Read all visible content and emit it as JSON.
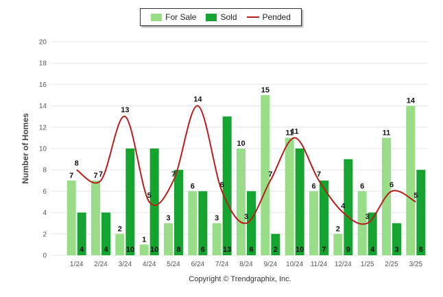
{
  "colors": {
    "for_sale": "#99dd88",
    "sold": "#16a431",
    "pended": "#b71c1c",
    "grid": "#e6e6e6",
    "axis_text": "#555555"
  },
  "credit": "Copyright © Trendgraphix, Inc.",
  "chart_data": {
    "type": "bar",
    "ylabel": "Number of Homes",
    "xlabel": "",
    "ylim": [
      0,
      20
    ],
    "yticks": [
      0,
      2,
      4,
      6,
      8,
      10,
      12,
      14,
      16,
      18,
      20
    ],
    "categories": [
      "1/24",
      "2/24",
      "3/24",
      "4/24",
      "5/24",
      "6/24",
      "7/24",
      "8/24",
      "9/24",
      "10/24",
      "11/24",
      "12/24",
      "1/25",
      "2/25",
      "3/25"
    ],
    "series": [
      {
        "name": "For Sale",
        "kind": "bar",
        "values": [
          7,
          7,
          2,
          1,
          3,
          6,
          3,
          10,
          15,
          11,
          6,
          2,
          6,
          11,
          14
        ]
      },
      {
        "name": "Sold",
        "kind": "bar",
        "values": [
          4,
          4,
          10,
          10,
          8,
          6,
          13,
          6,
          2,
          10,
          7,
          9,
          4,
          3,
          8
        ]
      },
      {
        "name": "Pended",
        "kind": "line",
        "values": [
          8,
          7,
          13,
          5,
          7,
          14,
          6,
          3,
          7,
          11,
          7,
          4,
          3,
          6,
          5
        ]
      }
    ],
    "legend_position": "top-center",
    "grid": true
  }
}
